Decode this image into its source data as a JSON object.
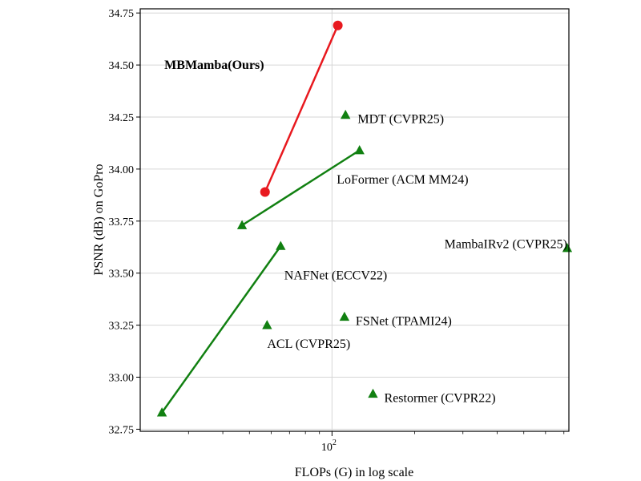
{
  "chart_data": {
    "type": "scatter",
    "xlabel": "FLOPs (G) in log scale",
    "ylabel": "PSNR (dB) on GoPro",
    "x_scale": "log",
    "xlim": [
      20,
      730
    ],
    "ylim": [
      32.74,
      34.77
    ],
    "grid": true,
    "y_ticks": [
      "32.75",
      "33.00",
      "33.25",
      "33.50",
      "33.75",
      "34.00",
      "34.25",
      "34.50",
      "34.75"
    ],
    "x_major_ticks": [
      {
        "value": 100,
        "base": "10",
        "exp": "2"
      }
    ],
    "x_minor_ticks": [
      30,
      40,
      50,
      60,
      70,
      80,
      90,
      200,
      300,
      400,
      500,
      600,
      700
    ],
    "colors": {
      "ours": "#e8191f",
      "others": "#118011"
    },
    "series": [
      {
        "name": "MBMamba(Ours)",
        "color": "#e8191f",
        "marker": "circle",
        "connected": true,
        "bold_label": true,
        "points": [
          {
            "x": 57,
            "y": 33.89
          },
          {
            "x": 105,
            "y": 34.69
          }
        ]
      },
      {
        "name": "LoFormer (ACM MM24)",
        "color": "#118011",
        "marker": "triangle",
        "connected": true,
        "points": [
          {
            "x": 47,
            "y": 33.73
          },
          {
            "x": 126,
            "y": 34.09
          }
        ]
      },
      {
        "name": "NAFNet (ECCV22)",
        "color": "#118011",
        "marker": "triangle",
        "connected": true,
        "points": [
          {
            "x": 24,
            "y": 32.83
          },
          {
            "x": 65,
            "y": 33.63
          }
        ]
      },
      {
        "name": "MDT (CVPR25)",
        "color": "#118011",
        "marker": "triangle",
        "connected": false,
        "points": [
          {
            "x": 112,
            "y": 34.26
          }
        ]
      },
      {
        "name": "MambaIRv2 (CVPR25)",
        "color": "#118011",
        "marker": "triangle",
        "connected": false,
        "points": [
          {
            "x": 720,
            "y": 33.62
          }
        ]
      },
      {
        "name": "FSNet (TPAMI24)",
        "color": "#118011",
        "marker": "triangle",
        "connected": false,
        "points": [
          {
            "x": 111,
            "y": 33.29
          }
        ]
      },
      {
        "name": "ACL (CVPR25)",
        "color": "#118011",
        "marker": "triangle",
        "connected": false,
        "points": [
          {
            "x": 58,
            "y": 33.25
          }
        ]
      },
      {
        "name": "Restormer (CVPR22)",
        "color": "#118011",
        "marker": "triangle",
        "connected": false,
        "points": [
          {
            "x": 141,
            "y": 32.92
          }
        ]
      }
    ],
    "annotations": [
      {
        "text": "MBMamba(Ours)",
        "bold": true,
        "x": 24.5,
        "y": 34.5,
        "anchor": "start"
      },
      {
        "text": "MDT (CVPR25)",
        "x": 124,
        "y": 34.24,
        "anchor": "start"
      },
      {
        "text": "LoFormer (ACM MM24)",
        "x": 104,
        "y": 33.95,
        "anchor": "start"
      },
      {
        "text": "MambaIRv2 (CVPR25)",
        "x": 720,
        "y": 33.64,
        "anchor": "end"
      },
      {
        "text": "NAFNet (ECCV22)",
        "x": 67,
        "y": 33.49,
        "anchor": "start"
      },
      {
        "text": "FSNet (TPAMI24)",
        "x": 122,
        "y": 33.27,
        "anchor": "start"
      },
      {
        "text": "ACL (CVPR25)",
        "x": 58,
        "y": 33.16,
        "anchor": "start"
      },
      {
        "text": "Restormer (CVPR22)",
        "x": 155,
        "y": 32.9,
        "anchor": "start"
      }
    ]
  }
}
